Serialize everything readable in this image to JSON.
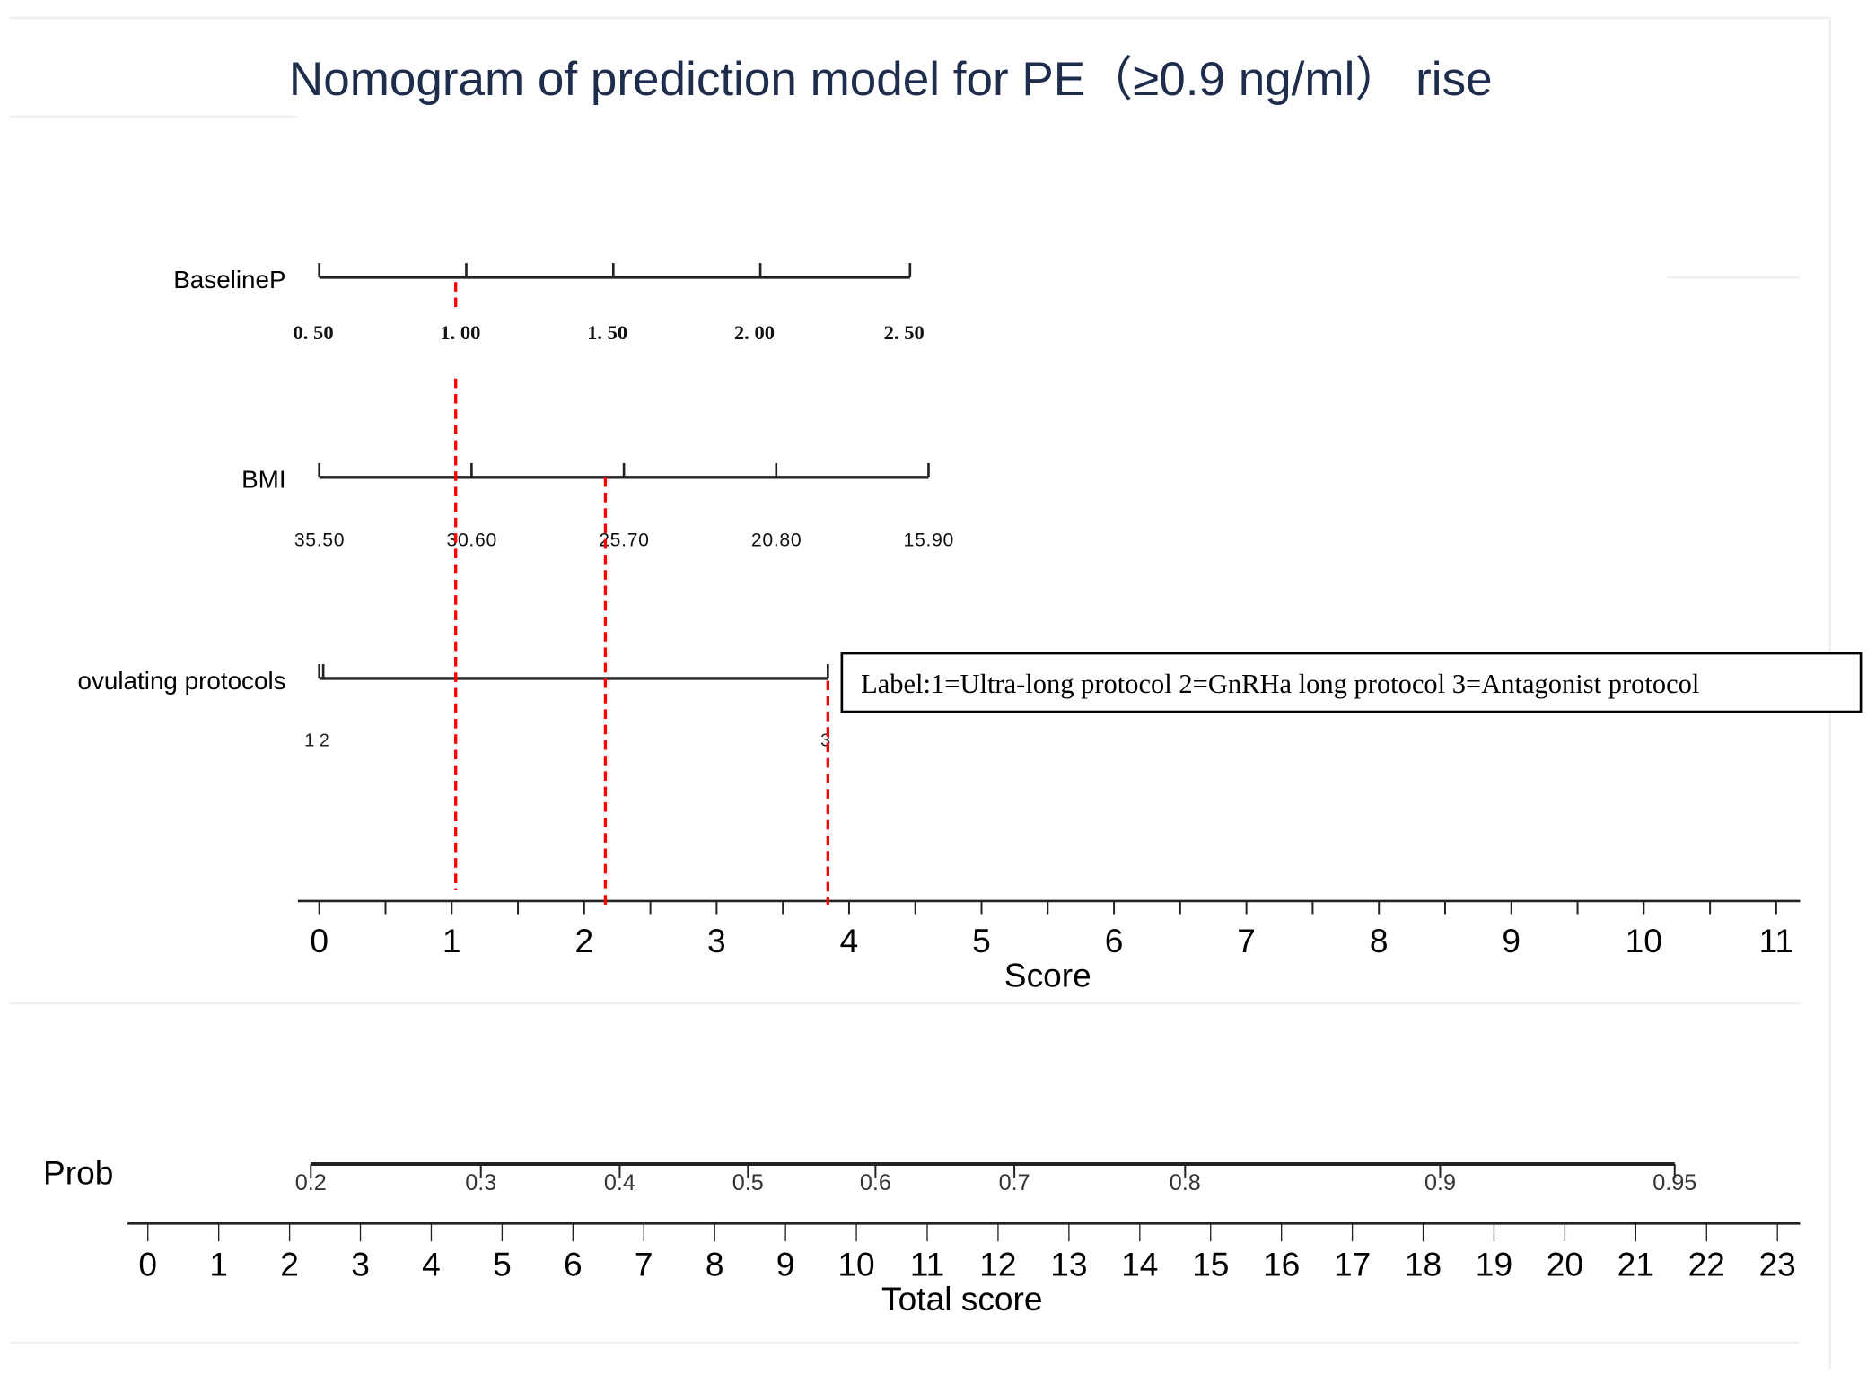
{
  "chart_data": {
    "type": "nomogram",
    "title": "Nomogram of prediction model for PE（≥0.9 ng/ml） rise",
    "points_axis": {
      "label": "Score",
      "min": 0,
      "max": 11,
      "ticks": [
        0,
        1,
        2,
        3,
        4,
        5,
        6,
        7,
        8,
        9,
        10,
        11
      ]
    },
    "variables": [
      {
        "name": "BaselineP",
        "tick_labels": [
          "0. 50",
          "1. 00",
          "1. 50",
          "2. 00",
          "2. 50"
        ],
        "values": [
          0.5,
          1.0,
          1.5,
          2.0,
          2.5
        ],
        "scores": [
          0,
          1.11,
          2.22,
          3.33,
          4.46
        ]
      },
      {
        "name": "BMI",
        "tick_labels": [
          "35.50",
          "30.60",
          "25.70",
          "20.80",
          "15.90"
        ],
        "values": [
          35.5,
          30.6,
          25.7,
          20.8,
          15.9
        ],
        "scores": [
          0,
          1.15,
          2.3,
          3.45,
          4.6
        ]
      },
      {
        "name": "ovulating  protocols",
        "tick_labels": [
          "1",
          "2",
          "3"
        ],
        "values": [
          1,
          2,
          3
        ],
        "scores": [
          0,
          0.03,
          3.84
        ]
      }
    ],
    "example_case_scores": [
      1.03,
      2.16,
      3.84
    ],
    "legend_note": "Label:1=Ultra-long protocol  2=GnRHa long protocol  3=Antagonist protocol",
    "total_axis": {
      "label": "Total score",
      "min": 0,
      "max": 23,
      "ticks": [
        0,
        1,
        2,
        3,
        4,
        5,
        6,
        7,
        8,
        9,
        10,
        11,
        12,
        13,
        14,
        15,
        16,
        17,
        18,
        19,
        20,
        21,
        22,
        23
      ]
    },
    "prob_axis": {
      "label": "Prob",
      "tick_labels": [
        "0.2",
        "0.3",
        "0.4",
        "0.5",
        "0.6",
        "0.7",
        "0.8",
        "0.9",
        "0.95"
      ],
      "total_scores": [
        2.3,
        4.7,
        6.66,
        8.47,
        10.27,
        12.23,
        14.64,
        18.24,
        21.55
      ]
    },
    "colors": {
      "title": "#1f2d4d",
      "axis": "#222222",
      "reference_line": "#ff0000"
    }
  }
}
